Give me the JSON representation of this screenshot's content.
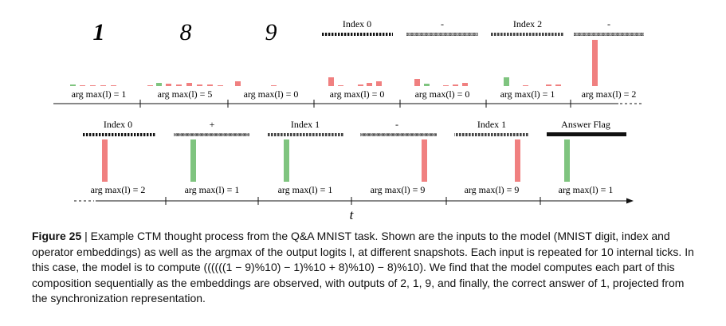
{
  "figure": {
    "top_row": {
      "inputs": [
        {
          "kind": "digit",
          "glyph": "1"
        },
        {
          "kind": "digit",
          "glyph": "8"
        },
        {
          "kind": "digit",
          "glyph": "9"
        },
        {
          "kind": "embedding",
          "label": "Index 0"
        },
        {
          "kind": "embedding",
          "label": "-"
        },
        {
          "kind": "embedding",
          "label": "Index 2"
        },
        {
          "kind": "embedding",
          "label": "-"
        }
      ],
      "outputs": [
        {
          "label": "arg max(l) = 1"
        },
        {
          "label": "arg max(l) = 5"
        },
        {
          "label": "arg max(l) = 0"
        },
        {
          "label": "arg max(l) = 0"
        },
        {
          "label": "arg max(l) = 0"
        },
        {
          "label": "arg max(l) = 1"
        },
        {
          "label": "arg max(l) = 2"
        }
      ]
    },
    "bottom_row": {
      "inputs": [
        {
          "kind": "embedding",
          "label": "Index 0"
        },
        {
          "kind": "embedding",
          "label": "+"
        },
        {
          "kind": "embedding",
          "label": "Index 1"
        },
        {
          "kind": "embedding",
          "label": "-"
        },
        {
          "kind": "embedding",
          "label": "Index 1"
        },
        {
          "kind": "embedding",
          "label": "Answer Flag"
        }
      ],
      "outputs": [
        {
          "label": "arg max(l) = 2"
        },
        {
          "label": "arg max(l) = 1"
        },
        {
          "label": "arg max(l) = 1"
        },
        {
          "label": "arg max(l) = 9"
        },
        {
          "label": "arg max(l) = 9"
        },
        {
          "label": "arg max(l) = 1"
        }
      ]
    },
    "axis_label": "t",
    "colors": {
      "green": "#7fc47f",
      "red": "#f08080"
    }
  },
  "caption": {
    "label": "Figure 25",
    "separator": " | ",
    "text": "Example CTM thought process from the Q&A MNIST task. Shown are the inputs to the model (MNIST digit, index and operator embeddings) as well as the argmax of the output logits l, at different snapshots. Each input is repeated for 10 internal ticks. In this case, the model is to compute ((((((1 − 9)%10) − 1)%10 + 8)%10) − 8)%10). We find that the model computes each part of this composition sequentially as the embeddings are observed, with outputs of 2, 1, 9, and finally, the correct answer of 1, projected from the synchronization representation."
  }
}
